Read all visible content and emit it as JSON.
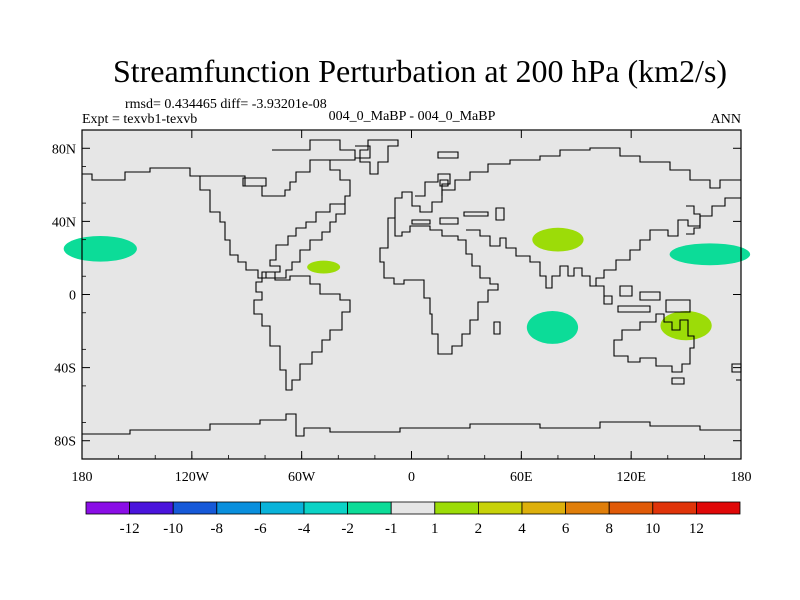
{
  "chart_data": {
    "type": "heatmap",
    "title": "Streamfunction Perturbation at 200 hPa (km2/s)",
    "stats_line": "rmsd= 0.434465 diff= -3.93201e-08",
    "left_label": "Expt = texvb1-texvb",
    "center_label": "004_0_MaBP - 004_0_MaBP",
    "right_label": "ANN",
    "projection": "cylindrical equidistant",
    "xlim": [
      -180,
      180
    ],
    "ylim": [
      -90,
      90
    ],
    "x_ticks": [
      {
        "value": -180,
        "label": "180"
      },
      {
        "value": -120,
        "label": "120W"
      },
      {
        "value": -60,
        "label": "60W"
      },
      {
        "value": 0,
        "label": "0"
      },
      {
        "value": 60,
        "label": "60E"
      },
      {
        "value": 120,
        "label": "120E"
      },
      {
        "value": 180,
        "label": "180"
      }
    ],
    "y_ticks": [
      {
        "value": 80,
        "label": "80N"
      },
      {
        "value": 40,
        "label": "40N"
      },
      {
        "value": 0,
        "label": "0"
      },
      {
        "value": -40,
        "label": "40S"
      },
      {
        "value": -80,
        "label": "80S"
      }
    ],
    "colorbar": {
      "labels": [
        "-12",
        "-10",
        "-8",
        "-6",
        "-4",
        "-2",
        "-1",
        "1",
        "2",
        "4",
        "6",
        "8",
        "10",
        "12"
      ],
      "colors": [
        "#8a0ee6",
        "#4a14dc",
        "#1659d8",
        "#0a8fdd",
        "#0ab3da",
        "#0bd3c6",
        "#0cdc98",
        "#e6e6e6",
        "#9cdc08",
        "#c8d20a",
        "#ddb00c",
        "#e07e0a",
        "#e05a08",
        "#e0340a",
        "#e00808"
      ]
    },
    "anomalies": [
      {
        "name": "north-pacific-east",
        "lon": -170,
        "lat": 25,
        "dlon": 20,
        "dlat": 7,
        "value": -1.5
      },
      {
        "name": "caribbean",
        "lon": -48,
        "lat": 15,
        "dlon": 9,
        "dlat": 3.5,
        "value": 1.5
      },
      {
        "name": "central-asia",
        "lon": 80,
        "lat": 30,
        "dlon": 14,
        "dlat": 6.5,
        "value": 1.5
      },
      {
        "name": "indian-ocean",
        "lon": 77,
        "lat": -18,
        "dlon": 14,
        "dlat": 9,
        "value": -1.5
      },
      {
        "name": "australia",
        "lon": 150,
        "lat": -17,
        "dlon": 14,
        "dlat": 8,
        "value": 1.5
      },
      {
        "name": "north-pacific-west",
        "lon": 163,
        "lat": 22,
        "dlon": 22,
        "dlat": 6,
        "value": -1.5
      }
    ]
  }
}
